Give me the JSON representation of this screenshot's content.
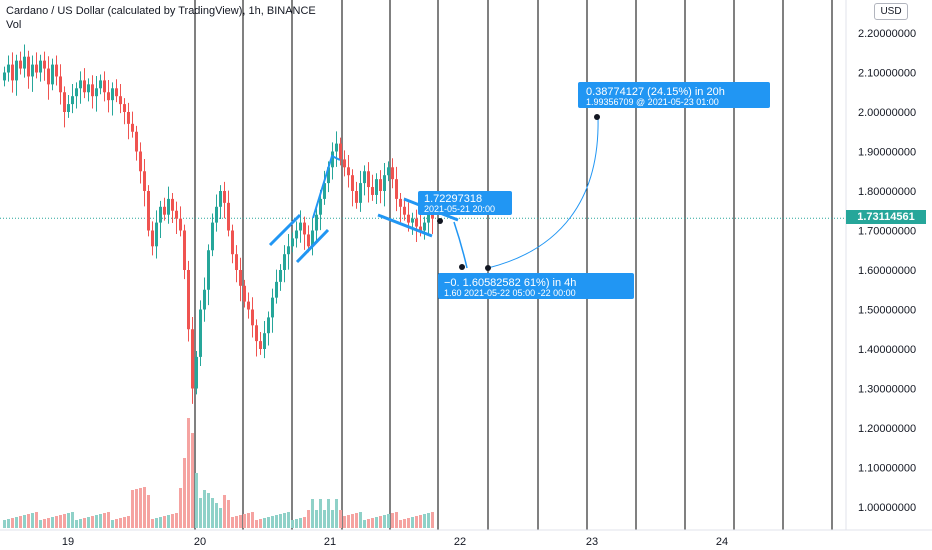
{
  "header": {
    "title": "Cardano / US Dollar (calculated by TradingView), 1h, BINANCE",
    "subtitle": "Vol"
  },
  "currency_button": "USD",
  "last_price": "1.73114561",
  "colors": {
    "up": "#26a69a",
    "down": "#ef5350",
    "vol_up": "#8fd1c8",
    "vol_down": "#f5a3a1",
    "drawing": "#2196f3",
    "vline": "#000000",
    "price_line": "#26a69a"
  },
  "annotations": [
    {
      "line1": "1.72297318",
      "line2": "2021-05-21 20:00"
    },
    {
      "line1": "−0.  1.60582582      61%) in 4h",
      "line2": "1.60  2021-05-22 05:00     -22  00:00"
    },
    {
      "line1": "0.38774127 (24.15%) in 20h",
      "line2": "1.99356709 @ 2021-05-23  01:00"
    }
  ],
  "chart_data": {
    "type": "candlestick",
    "title": "Cardano / US Dollar (calculated by TradingView), 1h, BINANCE",
    "y_ticks": [
      "2.20000000",
      "2.10000000",
      "2.00000000",
      "1.90000000",
      "1.80000000",
      "1.70000000",
      "1.60000000",
      "1.50000000",
      "1.40000000",
      "1.30000000",
      "1.20000000",
      "1.10000000",
      "1.00000000"
    ],
    "y_tick_values": [
      2.2,
      2.1,
      2.0,
      1.9,
      1.8,
      1.7,
      1.6,
      1.5,
      1.4,
      1.3,
      1.2,
      1.1,
      1.0
    ],
    "x_ticks": [
      "19",
      "20",
      "21",
      "22",
      "23",
      "24"
    ],
    "ylim": [
      0.97,
      2.25
    ],
    "last_price": 1.73114561,
    "candle_closes": [
      2.1,
      2.12,
      2.08,
      2.13,
      2.11,
      2.14,
      2.09,
      2.12,
      2.1,
      2.13,
      2.11,
      2.07,
      2.12,
      2.09,
      2.05,
      2.0,
      2.02,
      2.04,
      2.06,
      2.08,
      2.05,
      2.07,
      2.04,
      2.06,
      2.08,
      2.05,
      2.03,
      2.06,
      2.04,
      2.02,
      2.0,
      1.97,
      1.95,
      1.9,
      1.85,
      1.8,
      1.7,
      1.66,
      1.72,
      1.76,
      1.74,
      1.78,
      1.75,
      1.73,
      1.7,
      1.6,
      1.45,
      1.3,
      1.38,
      1.5,
      1.55,
      1.65,
      1.72,
      1.76,
      1.8,
      1.77,
      1.7,
      1.64,
      1.6,
      1.56,
      1.52,
      1.5,
      1.46,
      1.42,
      1.4,
      1.44,
      1.48,
      1.53,
      1.57,
      1.6,
      1.64,
      1.66,
      1.68,
      1.7,
      1.72,
      1.69,
      1.66,
      1.7,
      1.74,
      1.78,
      1.82,
      1.86,
      1.9,
      1.92,
      1.88,
      1.86,
      1.84,
      1.8,
      1.77,
      1.82,
      1.85,
      1.81,
      1.79,
      1.83,
      1.8,
      1.84,
      1.86,
      1.83,
      1.78,
      1.76,
      1.74,
      1.72,
      1.73,
      1.71,
      1.7,
      1.72,
      1.74,
      1.73
    ],
    "volume_bars": 108,
    "annotations": [
      {
        "price": 1.72297318,
        "time": "2021-05-21 20:00"
      },
      {
        "price": 1.60582582,
        "time": "2021-05-22 05:00",
        "duration": "4h"
      },
      {
        "price": 1.99356709,
        "time": "2021-05-23 01:00",
        "change": 0.38774127,
        "change_pct": "24.15%",
        "duration": "20h"
      }
    ]
  }
}
